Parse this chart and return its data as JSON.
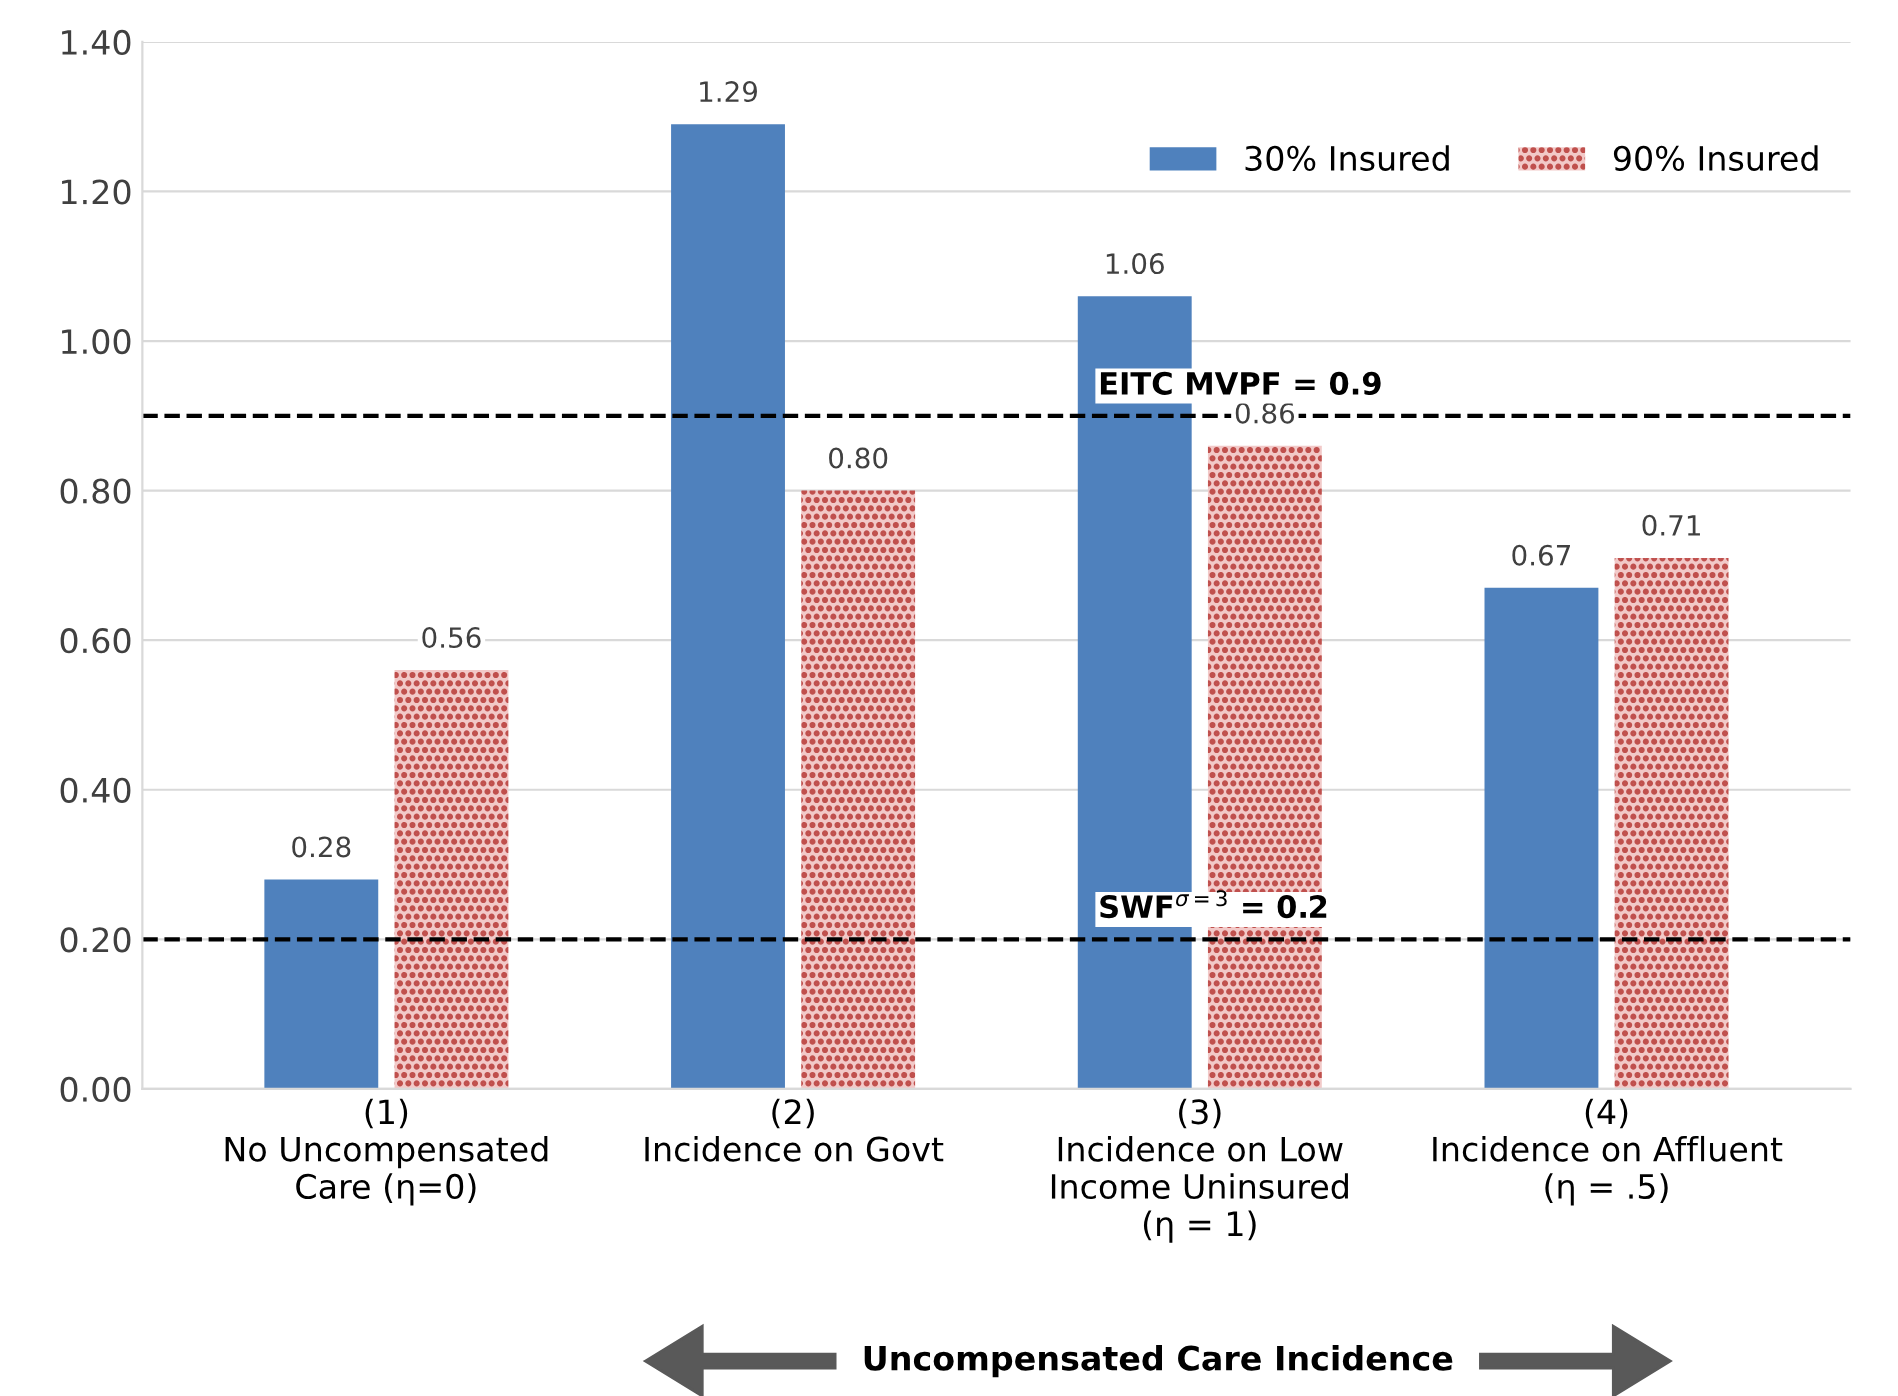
{
  "chart_data": {
    "type": "bar",
    "categories": [
      "(1)\nNo Uncompensated\nCare (η=0)",
      "(2)\nIncidence on Govt",
      "(3)\nIncidence on Low\nIncome Uninsured\n(η = 1)",
      "(4)\nIncidence on Affluent\n(η = .5)"
    ],
    "series": [
      {
        "name": "30% Insured",
        "color": "#4f81bd",
        "values": [
          0.28,
          1.29,
          1.06,
          0.67
        ],
        "value_labels": [
          "0.28",
          "1.29",
          "1.06",
          "0.67"
        ]
      },
      {
        "name": "90% Insured",
        "color": "#c0504d",
        "values": [
          0.56,
          0.8,
          0.86,
          0.71
        ],
        "value_labels": [
          "0.56",
          "0.80",
          "0.86",
          "0.71"
        ]
      }
    ],
    "ylim": [
      0,
      1.4
    ],
    "yticks": [
      {
        "value": 0,
        "label": "0.00"
      },
      {
        "value": 0.2,
        "label": "0.20"
      },
      {
        "value": 0.4,
        "label": "0.40"
      },
      {
        "value": 0.6,
        "label": "0.60"
      },
      {
        "value": 0.8,
        "label": "0.80"
      },
      {
        "value": 1.0,
        "label": "1.00"
      },
      {
        "value": 1.2,
        "label": "1.20"
      },
      {
        "value": 1.4,
        "label": "1.40"
      }
    ],
    "grid": "y",
    "legend": "top right",
    "ref_lines": [
      {
        "axis": "y",
        "value": 0.9,
        "label": "EITC MVPF = 0.9",
        "line_style": "dashed",
        "color": "#000000"
      },
      {
        "axis": "y",
        "value": 0.2,
        "label": "SWF$^{σ=3}$ = 0.2",
        "line_style": "dashed",
        "color": "#000000"
      }
    ],
    "annotations": [
      "Uncompensated Care Incidence"
    ]
  }
}
